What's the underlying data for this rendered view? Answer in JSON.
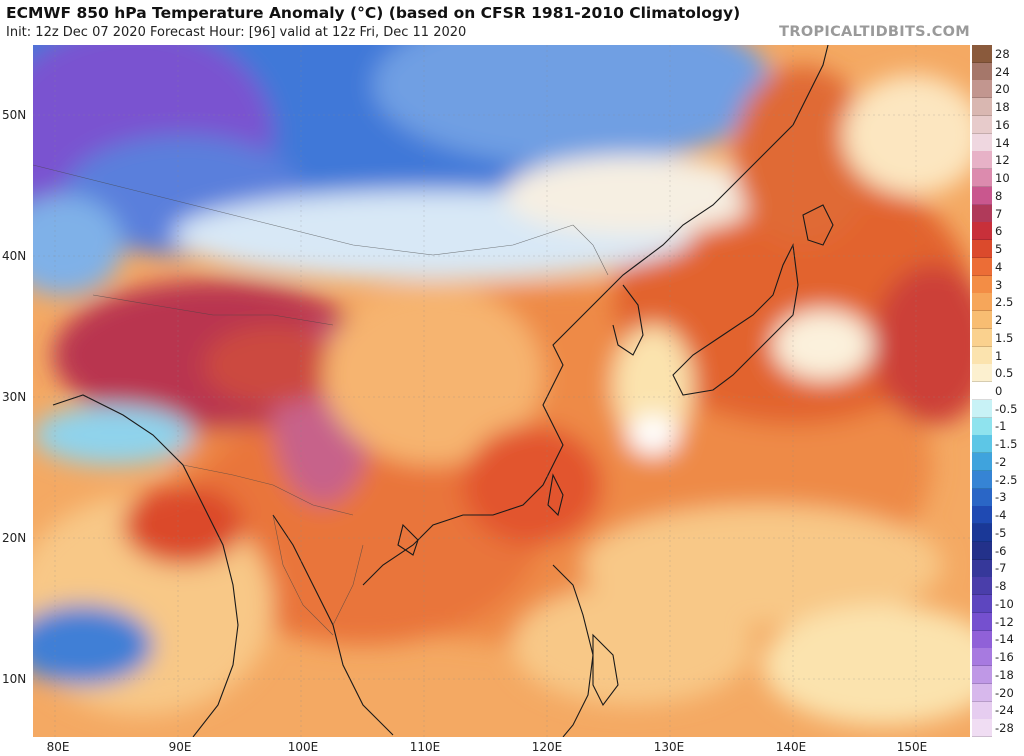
{
  "header": {
    "title": "ECMWF 850 hPa Temperature Anomaly (°C) (based on CFSR 1981-2010 Climatology)",
    "subtitle": "Init: 12z Dec 07 2020   Forecast Hour: [96]   valid at 12z Fri, Dec 11 2020",
    "brand": "TROPICALTIDBITS.COM"
  },
  "map": {
    "latitude_labels": [
      "50N",
      "40N",
      "30N",
      "20N",
      "10N"
    ],
    "longitude_labels": [
      "80E",
      "90E",
      "100E",
      "110E",
      "120E",
      "130E",
      "140E",
      "150E"
    ],
    "colors": {
      "very_cold": "#7a52d0",
      "cold": "#2f6fd4",
      "cool": "#7fb1e8",
      "neutral": "#f7f1e1",
      "mild": "#f8c887",
      "warm": "#f2934f",
      "hot": "#d94a2b",
      "very_hot": "#b8324e",
      "extreme": "#c7628a"
    }
  },
  "colorbar": {
    "labels": [
      "28",
      "24",
      "20",
      "18",
      "16",
      "14",
      "12",
      "10",
      "8",
      "7",
      "6",
      "5",
      "4",
      "3",
      "2.5",
      "2",
      "1.5",
      "1",
      "0.5",
      "0",
      "-0.5",
      "-1",
      "-1.5",
      "-2",
      "-2.5",
      "-3",
      "-4",
      "-5",
      "-6",
      "-7",
      "-8",
      "-10",
      "-12",
      "-14",
      "-16",
      "-18",
      "-20",
      "-24",
      "-28"
    ],
    "colors": [
      "#8a5a3c",
      "#a5776a",
      "#c2968f",
      "#d9b7b1",
      "#e7cbcb",
      "#efd7e0",
      "#e7b2c7",
      "#dc8bae",
      "#c9578e",
      "#b03a5a",
      "#c8303a",
      "#db4a2c",
      "#ec6d36",
      "#f38d45",
      "#f6a65a",
      "#f8bd72",
      "#fad18e",
      "#fbe3ae",
      "#fcf0cf",
      "#ffffff",
      "#c8f2f6",
      "#8fe3ee",
      "#5dc6e6",
      "#3fa3dd",
      "#3684d4",
      "#2a66c6",
      "#1f4ab3",
      "#1a3897",
      "#23318a",
      "#36389a",
      "#4a3eaa",
      "#5d46bf",
      "#7550cf",
      "#9061d8",
      "#a77ae0",
      "#bf98e6",
      "#d7b8ec",
      "#e6cdf0",
      "#f0ddf3"
    ]
  }
}
